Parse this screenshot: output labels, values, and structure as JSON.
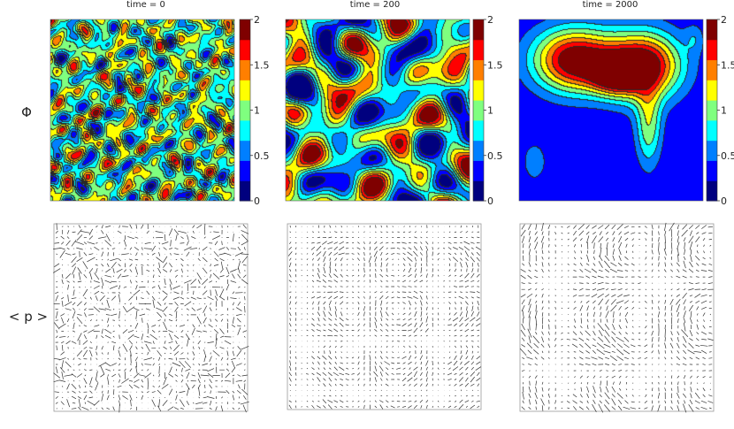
{
  "row_labels": {
    "phi": "Φ",
    "p": "< p >"
  },
  "colorbar": {
    "ticks": [
      "2",
      "1.5",
      "1",
      "0.5",
      "0"
    ],
    "range": [
      0,
      2
    ]
  },
  "colormap": [
    "#00007f",
    "#0000ff",
    "#007fff",
    "#00ffff",
    "#7fff7f",
    "#ffff00",
    "#ff7f00",
    "#ff0000",
    "#7f0000"
  ],
  "chart_data": [
    {
      "type": "heatmap",
      "title": "time = 0",
      "value_range": [
        0,
        2
      ],
      "field_model": {
        "mean": 0.95,
        "waves": [
          [
            5.3,
            2.1,
            0.0,
            0.18
          ],
          [
            3.2,
            6.4,
            1.2,
            0.17
          ],
          [
            7.5,
            -4.1,
            2.1,
            0.15
          ],
          [
            -6.0,
            5.2,
            0.7,
            0.14
          ],
          [
            9.1,
            3.3,
            2.9,
            0.12
          ],
          [
            2.4,
            -8.6,
            1.8,
            0.12
          ],
          [
            -3.7,
            -5.9,
            0.4,
            0.13
          ],
          [
            10.2,
            -1.4,
            2.5,
            0.1
          ],
          [
            4.4,
            9.8,
            1.1,
            0.1
          ],
          [
            -8.8,
            7.3,
            3.0,
            0.09
          ],
          [
            6.6,
            11.2,
            0.2,
            0.08
          ],
          [
            12.1,
            5.5,
            1.6,
            0.08
          ]
        ]
      }
    },
    {
      "type": "heatmap",
      "title": "time = 200",
      "value_range": [
        0,
        2
      ],
      "field_model": {
        "mean": 0.9,
        "waves": [
          [
            2.1,
            1.3,
            0.4,
            0.38
          ],
          [
            1.2,
            3.6,
            2.2,
            0.33
          ],
          [
            3.7,
            -1.9,
            1.1,
            0.3
          ],
          [
            -2.8,
            2.6,
            0.0,
            0.26
          ],
          [
            4.2,
            3.1,
            2.8,
            0.2
          ],
          [
            1.6,
            -4.3,
            1.7,
            0.18
          ]
        ]
      }
    },
    {
      "type": "heatmap",
      "title": "time = 2000",
      "value_range": [
        0,
        2
      ],
      "field_model": {
        "mean": 0.25,
        "blobs": [
          [
            0.3,
            0.22,
            0.22,
            0.17,
            1.8
          ],
          [
            0.67,
            0.25,
            0.2,
            0.18,
            1.8
          ],
          [
            0.52,
            0.3,
            0.13,
            0.1,
            1.2
          ],
          [
            0.7,
            0.58,
            0.07,
            0.22,
            0.8
          ],
          [
            0.08,
            0.78,
            0.06,
            0.1,
            0.4
          ],
          [
            0.95,
            0.1,
            0.05,
            0.08,
            0.3
          ]
        ]
      }
    },
    {
      "type": "quiver",
      "title": "",
      "pattern": "random",
      "grid": [
        34,
        34
      ],
      "scale": 1.0
    },
    {
      "type": "quiver",
      "title": "",
      "pattern": "swirl_weak",
      "grid": [
        34,
        34
      ],
      "scale": 0.75
    },
    {
      "type": "quiver",
      "title": "",
      "pattern": "swirl_strong",
      "grid": [
        30,
        30
      ],
      "scale": 0.95
    }
  ]
}
